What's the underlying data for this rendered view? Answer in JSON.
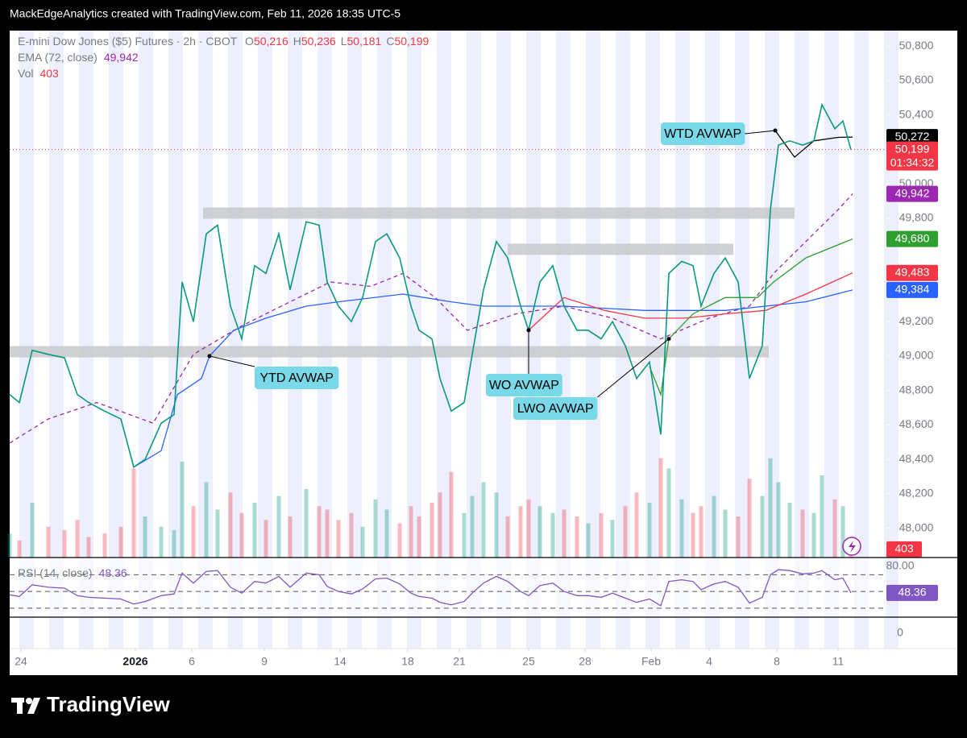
{
  "header": {
    "credit": "MackEdgeAnalytics created with TradingView.com, Feb 11, 2026 18:35 UTC-5"
  },
  "footer": {
    "brand": "TradingView"
  },
  "chart_data": {
    "type": "line",
    "symbol": "E-mini Dow Jones ($5) Futures · 2h · CBOT",
    "ohlc": [
      {
        "key": "O",
        "value": 50216,
        "label": "50,216"
      },
      {
        "key": "H",
        "value": 50236,
        "label": "50,236"
      },
      {
        "key": "L",
        "value": 50181,
        "label": "50,181"
      },
      {
        "key": "C",
        "value": 50199,
        "label": "50,199"
      }
    ],
    "xlim": [
      0,
      588
    ],
    "xticks": [
      {
        "value": 7,
        "label": "24"
      },
      {
        "value": 78,
        "label": "2026"
      },
      {
        "value": 113,
        "label": "6"
      },
      {
        "value": 158,
        "label": "9"
      },
      {
        "value": 205,
        "label": "14"
      },
      {
        "value": 247,
        "label": "18"
      },
      {
        "value": 279,
        "label": "21"
      },
      {
        "value": 322,
        "label": "25"
      },
      {
        "value": 357,
        "label": "28"
      },
      {
        "value": 398,
        "label": "Feb"
      },
      {
        "value": 434,
        "label": "4"
      },
      {
        "value": 476,
        "label": "8"
      },
      {
        "value": 514,
        "label": "11"
      }
    ],
    "ylim": [
      47830,
      50890
    ],
    "yticks": [
      {
        "value": 48000,
        "label": "48,000"
      },
      {
        "value": 48200,
        "label": "48,200"
      },
      {
        "value": 48400,
        "label": "48,400"
      },
      {
        "value": 48600,
        "label": "48,600"
      },
      {
        "value": 48800,
        "label": "48,800"
      },
      {
        "value": 49000,
        "label": "49,000"
      },
      {
        "value": 49200,
        "label": "49,200"
      },
      {
        "value": 49800,
        "label": "49,800"
      },
      {
        "value": 50000,
        "label": "50,000"
      },
      {
        "value": 50400,
        "label": "50,400"
      },
      {
        "value": 50600,
        "label": "50,600"
      },
      {
        "value": 50800,
        "label": "50,800"
      }
    ],
    "price": {
      "color": "#089981",
      "down_color": "#f23645",
      "price_label": {
        "value": 50199,
        "label": "50,199"
      },
      "countdown": "01:34:32",
      "x": [
        0,
        6,
        14,
        24,
        34,
        42,
        49,
        59,
        69,
        77,
        84,
        94,
        102,
        107,
        114,
        122,
        129,
        137,
        144,
        152,
        159,
        167,
        174,
        184,
        192,
        197,
        204,
        212,
        219,
        227,
        234,
        242,
        249,
        254,
        262,
        267,
        274,
        282,
        287,
        294,
        302,
        309,
        317,
        322,
        329,
        337,
        344,
        352,
        359,
        367,
        374,
        382,
        389,
        397,
        404,
        409,
        417,
        424,
        429,
        437,
        444,
        452,
        459,
        467,
        472,
        477,
        484,
        492,
        499,
        504,
        512,
        517,
        522
      ],
      "values": [
        48776,
        48730,
        49033,
        49010,
        48990,
        48776,
        48730,
        48680,
        48635,
        48355,
        48400,
        48610,
        48660,
        49430,
        49200,
        49710,
        49760,
        49290,
        49100,
        49525,
        49480,
        49710,
        49385,
        49780,
        49760,
        49430,
        49290,
        49200,
        49340,
        49665,
        49710,
        49570,
        49290,
        49150,
        49100,
        48870,
        48680,
        48730,
        49010,
        49385,
        49665,
        49570,
        49290,
        49150,
        49430,
        49525,
        49290,
        49150,
        49150,
        49100,
        49200,
        49060,
        48870,
        48965,
        48545,
        49480,
        49550,
        49525,
        49290,
        49480,
        49570,
        49430,
        48870,
        49060,
        49850,
        50225,
        50250,
        50225,
        50250,
        50460,
        50320,
        50365,
        50199
      ]
    },
    "series": [
      {
        "name": "EMA (72, close)",
        "color": "#9c27b0",
        "dashed": true,
        "price_label": {
          "value": 49942,
          "label": "49,942"
        },
        "x": [
          0,
          24,
          54,
          89,
          114,
          144,
          174,
          199,
          224,
          244,
          264,
          284,
          314,
          344,
          374,
          404,
          434,
          459,
          474,
          494,
          514,
          523
        ],
        "values": [
          48495,
          48635,
          48730,
          48610,
          49010,
          49175,
          49315,
          49430,
          49405,
          49480,
          49340,
          49150,
          49245,
          49290,
          49220,
          49100,
          49220,
          49290,
          49480,
          49665,
          49850,
          49942
        ]
      },
      {
        "name": "YTD AVWAP",
        "color": "#2962ff",
        "dashed": false,
        "price_label": {
          "value": 49384,
          "label": "49,384"
        },
        "x": [
          77,
          94,
          104,
          119,
          124,
          139,
          159,
          184,
          204,
          244,
          274,
          294,
          344,
          394,
          444,
          469,
          494,
          523
        ],
        "values": [
          48355,
          48450,
          48776,
          48870,
          49000,
          49150,
          49220,
          49290,
          49315,
          49360,
          49315,
          49290,
          49290,
          49265,
          49265,
          49290,
          49315,
          49384
        ]
      },
      {
        "name": "WO AVWAP",
        "color": "#f23645",
        "dashed": false,
        "price_label": {
          "value": 49483,
          "label": "49,483"
        },
        "x": [
          322,
          344,
          369,
          394,
          419,
          444,
          469,
          494,
          523
        ],
        "values": [
          49150,
          49340,
          49265,
          49220,
          49220,
          49245,
          49265,
          49360,
          49483
        ]
      },
      {
        "name": "LWO AVWAP",
        "color": "#2e9e2e",
        "dashed": false,
        "price_label": {
          "value": 49680,
          "label": "49,680"
        },
        "x": [
          397,
          404,
          409,
          424,
          444,
          464,
          474,
          494,
          523
        ],
        "values": [
          48940,
          48776,
          49100,
          49245,
          49340,
          49340,
          49430,
          49570,
          49680
        ]
      },
      {
        "name": "WTD AVWAP",
        "color": "#000000",
        "dashed": false,
        "price_label": {
          "value": 50272,
          "label": "50,272"
        },
        "x": [
          475,
          487,
          499,
          514,
          523
        ],
        "values": [
          50310,
          50155,
          50250,
          50270,
          50272
        ]
      }
    ],
    "zones": [
      {
        "value": 49830,
        "from": 120,
        "to": 487
      },
      {
        "value": 49620,
        "from": 309,
        "to": 449
      },
      {
        "value": 49025,
        "from": 0,
        "to": 471
      }
    ],
    "volume": {
      "name": "Vol",
      "value": 403,
      "label": "403",
      "ylim": [
        0,
        4000
      ],
      "values": [
        700,
        500,
        1600,
        900,
        800,
        1100,
        600,
        700,
        900,
        2600,
        1200,
        900,
        800,
        2800,
        1500,
        2200,
        1400,
        1900,
        1300,
        1600,
        1100,
        1800,
        1200,
        2000,
        1500,
        1400,
        1100,
        1300,
        900,
        1700,
        1400,
        1000,
        1500,
        1200,
        1600,
        1900,
        2500,
        1300,
        1800,
        2200,
        1900,
        1200,
        1500,
        1700,
        1500,
        1300,
        1400,
        1200,
        1000,
        1300,
        1100,
        1500,
        1900,
        1600,
        2900,
        2600,
        1700,
        1300,
        1500,
        1800,
        1400,
        1200,
        2300,
        1800,
        2900,
        2200,
        1600,
        1400,
        1300,
        2400,
        1700,
        1500,
        403
      ]
    },
    "rsi": {
      "name": "RSI (14, close)",
      "color": "#7e57c2",
      "value": 48.36,
      "label": "48.36",
      "ylim": [
        0,
        90
      ],
      "yticks": [
        {
          "value": 80,
          "label": "80.00"
        },
        0
      ],
      "levels": [
        70,
        50,
        30
      ],
      "values": [
        46,
        44,
        58,
        55,
        54,
        45,
        43,
        42,
        41,
        35,
        38,
        45,
        47,
        72,
        60,
        74,
        75,
        55,
        48,
        62,
        60,
        68,
        55,
        72,
        70,
        56,
        50,
        47,
        53,
        65,
        66,
        59,
        48,
        44,
        42,
        37,
        34,
        38,
        48,
        60,
        68,
        62,
        50,
        45,
        57,
        60,
        50,
        45,
        45,
        43,
        48,
        42,
        37,
        41,
        33,
        62,
        64,
        62,
        52,
        59,
        62,
        55,
        36,
        43,
        70,
        76,
        75,
        71,
        72,
        75,
        64,
        66,
        48.36
      ]
    }
  }
}
